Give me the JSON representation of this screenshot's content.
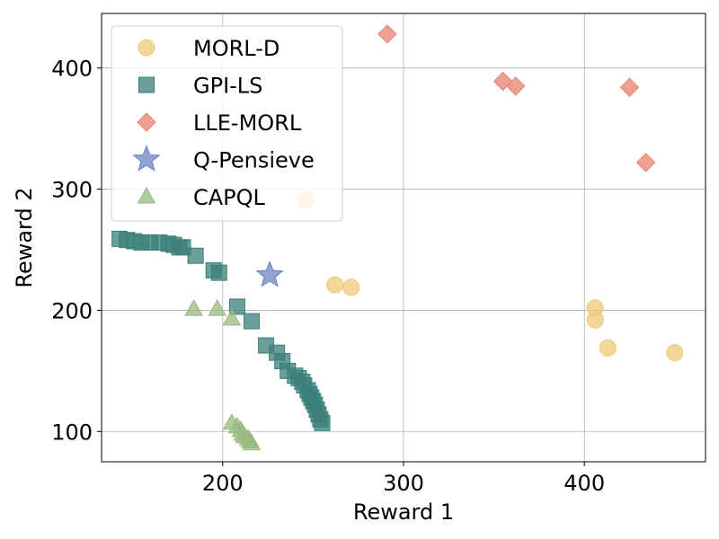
{
  "chart_data": {
    "type": "scatter",
    "title": "",
    "xlabel": "Reward 1",
    "ylabel": "Reward 2",
    "xlim": [
      133,
      467
    ],
    "ylim": [
      75,
      445
    ],
    "xticks": [
      200,
      300,
      400
    ],
    "yticks": [
      100,
      200,
      300,
      400
    ],
    "grid": true,
    "legend_position": "top-left",
    "series": [
      {
        "name": "MORL-D",
        "marker": "circle",
        "color": "#EDC977",
        "points": [
          [
            246,
            291
          ],
          [
            262,
            221
          ],
          [
            271,
            219
          ],
          [
            406,
            202
          ],
          [
            406,
            192
          ],
          [
            413,
            169
          ],
          [
            450,
            165
          ]
        ]
      },
      {
        "name": "GPI-LS",
        "marker": "square",
        "color": "#3B7F7A",
        "points": [
          [
            143,
            259
          ],
          [
            147,
            258
          ],
          [
            151,
            257
          ],
          [
            155,
            256
          ],
          [
            160,
            256
          ],
          [
            165,
            256
          ],
          [
            170,
            255
          ],
          [
            173,
            254
          ],
          [
            176,
            252
          ],
          [
            178,
            252
          ],
          [
            185,
            245
          ],
          [
            195,
            233
          ],
          [
            198,
            231
          ],
          [
            208,
            203
          ],
          [
            216,
            191
          ],
          [
            224,
            171
          ],
          [
            230,
            165
          ],
          [
            233,
            158
          ],
          [
            236,
            150
          ],
          [
            240,
            146
          ],
          [
            242,
            144
          ],
          [
            244,
            141
          ],
          [
            245,
            138
          ],
          [
            247,
            134
          ],
          [
            248,
            131
          ],
          [
            249,
            128
          ],
          [
            250,
            125
          ],
          [
            251,
            122
          ],
          [
            252,
            118
          ],
          [
            253,
            114
          ],
          [
            254,
            110
          ],
          [
            255,
            107
          ]
        ]
      },
      {
        "name": "LLE-MORL",
        "marker": "diamond",
        "color": "#E8826F",
        "points": [
          [
            291,
            428
          ],
          [
            355,
            389
          ],
          [
            362,
            385
          ],
          [
            425,
            384
          ],
          [
            434,
            322
          ]
        ]
      },
      {
        "name": "Q-Pensieve",
        "marker": "star",
        "color": "#6C84C2",
        "points": [
          [
            226,
            229
          ]
        ]
      },
      {
        "name": "CAPQL",
        "marker": "triangle",
        "color": "#98B982",
        "points": [
          [
            184,
            201
          ],
          [
            197,
            201
          ],
          [
            205,
            193
          ],
          [
            205,
            107
          ],
          [
            208,
            104
          ],
          [
            210,
            101
          ],
          [
            211,
            98
          ],
          [
            212,
            96
          ],
          [
            214,
            94
          ],
          [
            215,
            92
          ],
          [
            216,
            90
          ]
        ]
      }
    ]
  }
}
